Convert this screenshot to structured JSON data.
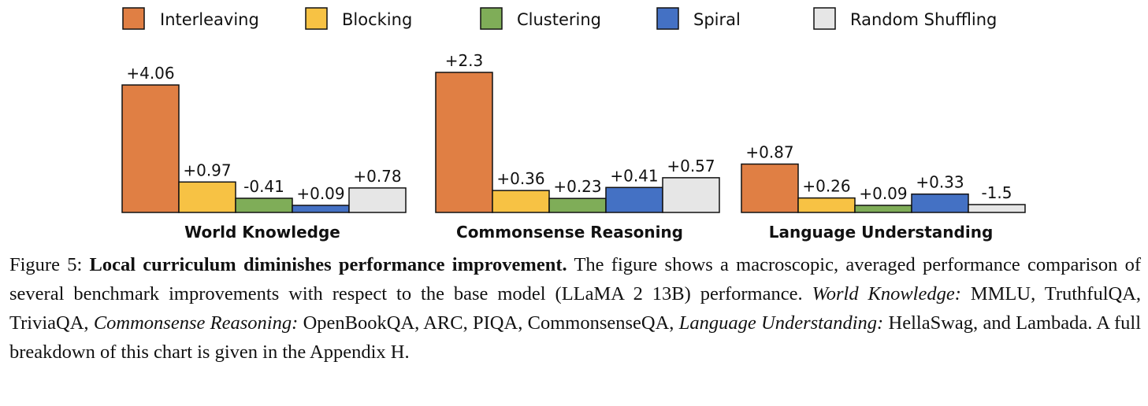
{
  "chart_data": {
    "type": "bar",
    "legend_position": "top",
    "series": [
      {
        "name": "Interleaving",
        "color": "#E07F44"
      },
      {
        "name": "Blocking",
        "color": "#F7C244"
      },
      {
        "name": "Clustering",
        "color": "#7FAD58"
      },
      {
        "name": "Spiral",
        "color": "#4471C4"
      },
      {
        "name": "Random Shuffling",
        "color": "#E6E6E6"
      }
    ],
    "groups": [
      {
        "title": "World Knowledge",
        "values": [
          4.06,
          0.97,
          -0.41,
          0.09,
          0.78
        ],
        "labels": [
          "+4.06",
          "+0.97",
          "-0.41",
          "+0.09",
          "+0.78"
        ]
      },
      {
        "title": "Commonsense Reasoning",
        "values": [
          2.3,
          0.36,
          0.23,
          0.41,
          0.57
        ],
        "labels": [
          "+2.3",
          "+0.36",
          "+0.23",
          "+0.41",
          "+0.57"
        ]
      },
      {
        "title": "Language Understanding",
        "values": [
          0.87,
          0.26,
          0.09,
          0.33,
          -1.5
        ],
        "labels": [
          "+0.87",
          "+0.26",
          "+0.09",
          "+0.33",
          "-1.5"
        ]
      }
    ]
  },
  "caption": {
    "figure_label": "Figure 5:",
    "bold_title": "Local curriculum diminishes performance improvement.",
    "text1": "The figure shows a macroscopic, averaged performance comparison of several benchmark improvements with respect to the base model (LLaMA 2 13B) performance.",
    "wk_label": "World Knowledge:",
    "wk_list": "MMLU, TruthfulQA, TriviaQA,",
    "cr_label": "Commonsense Reasoning:",
    "cr_list": "OpenBookQA, ARC, PIQA, CommonsenseQA,",
    "lu_label": "Language Understanding:",
    "lu_list": "HellaSwag, and Lambada. A full breakdown of this chart is given in the Appendix H."
  }
}
